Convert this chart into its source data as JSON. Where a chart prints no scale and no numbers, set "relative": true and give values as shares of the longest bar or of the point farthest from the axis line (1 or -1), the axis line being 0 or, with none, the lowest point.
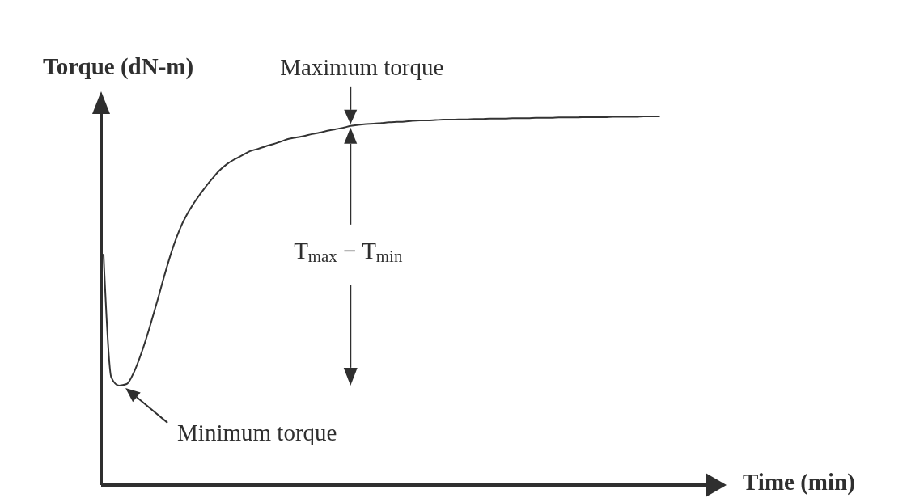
{
  "chart_data": {
    "type": "line",
    "relative": true,
    "xlabel": "Time (min)",
    "ylabel": "Torque (dN-m)",
    "categories": [
      null,
      null,
      null,
      null,
      null,
      null,
      null,
      null,
      null,
      null,
      null,
      null,
      null,
      null,
      null,
      null,
      null,
      null,
      null,
      null,
      null,
      null,
      null,
      null,
      null,
      null,
      null,
      null,
      null,
      null,
      null,
      null,
      null,
      null,
      null,
      null,
      null,
      null,
      null,
      null,
      null,
      null,
      null,
      null,
      null,
      null,
      null,
      null,
      null,
      null,
      null,
      null,
      null,
      null,
      null,
      null,
      null,
      null,
      null,
      null,
      null,
      null,
      null,
      null,
      null,
      null,
      null,
      null,
      null,
      null,
      null,
      null,
      null,
      null,
      null,
      null,
      null,
      null,
      null
    ],
    "values": [
      0.625,
      0.292,
      0.27,
      0.274,
      0.309,
      0.364,
      0.43,
      0.502,
      0.577,
      0.645,
      0.7,
      0.741,
      0.774,
      0.803,
      0.829,
      0.853,
      0.871,
      0.884,
      0.895,
      0.906,
      0.912,
      0.919,
      0.925,
      0.932,
      0.939,
      0.943,
      0.947,
      0.952,
      0.956,
      0.961,
      0.965,
      0.969,
      0.974,
      0.977,
      0.979,
      0.98,
      0.982,
      0.984,
      0.985,
      0.986,
      0.988,
      0.989,
      0.989,
      0.99,
      0.991,
      0.991,
      0.992,
      0.992,
      0.993,
      0.993,
      0.994,
      0.994,
      0.994,
      0.995,
      0.995,
      0.995,
      0.996,
      0.996,
      0.996,
      0.997,
      0.997,
      0.997,
      0.998,
      0.998,
      0.998,
      0.998,
      0.999,
      0.999,
      0.999,
      0.999,
      1.0,
      1.0,
      1.0,
      null,
      null,
      null,
      null,
      null,
      null
    ],
    "color": "#333333",
    "line_style": "solid",
    "annotations": [
      "Maximum torque",
      "T$_{max}$ − T$_{min}$",
      "Minimum torque"
    ]
  }
}
